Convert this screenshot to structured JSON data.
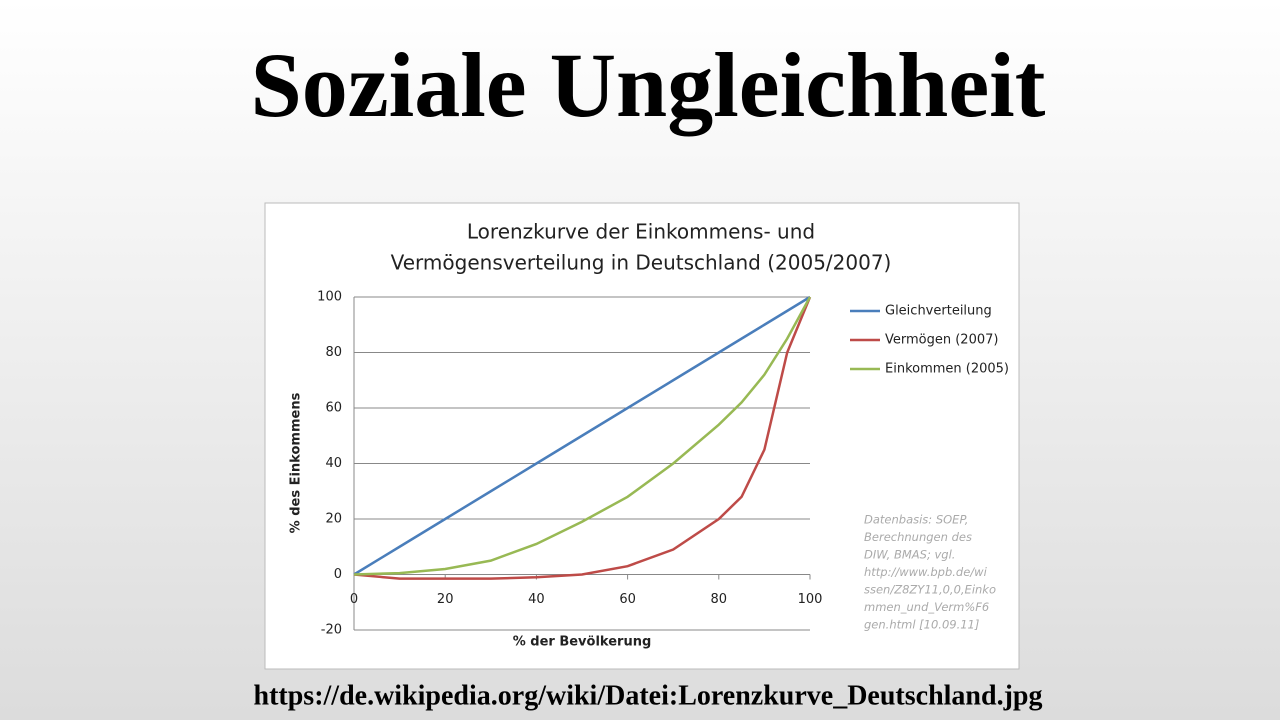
{
  "header": {
    "title": "Soziale Ungleichheit"
  },
  "chart_data": {
    "type": "line",
    "title": [
      "Lorenzkurve der Einkommens- und",
      "Vermögensverteilung in Deutschland (2005/2007)"
    ],
    "x_label": "% der Bevölkerung",
    "y_label": "% des Einkommens",
    "x": [
      0,
      10,
      20,
      30,
      40,
      50,
      60,
      70,
      80,
      85,
      90,
      95,
      100
    ],
    "series": [
      {
        "name": "Gleichverteilung",
        "color": "#4a7ebb",
        "values": [
          0,
          10,
          20,
          30,
          40,
          50,
          60,
          70,
          80,
          85,
          90,
          95,
          100
        ]
      },
      {
        "name": "Vermögen (2007)",
        "color": "#be4b48",
        "values": [
          0,
          -1.5,
          -1.5,
          -1.5,
          -1,
          0,
          3,
          9,
          20,
          28,
          45,
          80,
          100
        ]
      },
      {
        "name": "Einkommen (2005)",
        "color": "#98b954",
        "values": [
          0,
          0.5,
          2,
          5,
          11,
          19,
          28,
          40,
          54,
          62,
          72,
          85,
          100
        ]
      }
    ],
    "xlim": [
      0,
      100
    ],
    "xticks": [
      0,
      20,
      40,
      60,
      80,
      100
    ],
    "ylim": [
      -20,
      100
    ],
    "yticks": [
      -20,
      0,
      20,
      40,
      60,
      80,
      100
    ],
    "grid": true,
    "legend": "right",
    "annotation": [
      "Datenbasis: SOEP,",
      "Berechnungen des",
      "DIW, BMAS; vgl.",
      "http://www.bpb.de/wi",
      "ssen/Z8ZY11,0,0,Einko",
      "mmen_und_Verm%F6",
      "gen.html [10.09.11]"
    ]
  },
  "footer": {
    "source": "https://de.wikipedia.org/wiki/Datei:Lorenzkurve_Deutschland.jpg"
  }
}
